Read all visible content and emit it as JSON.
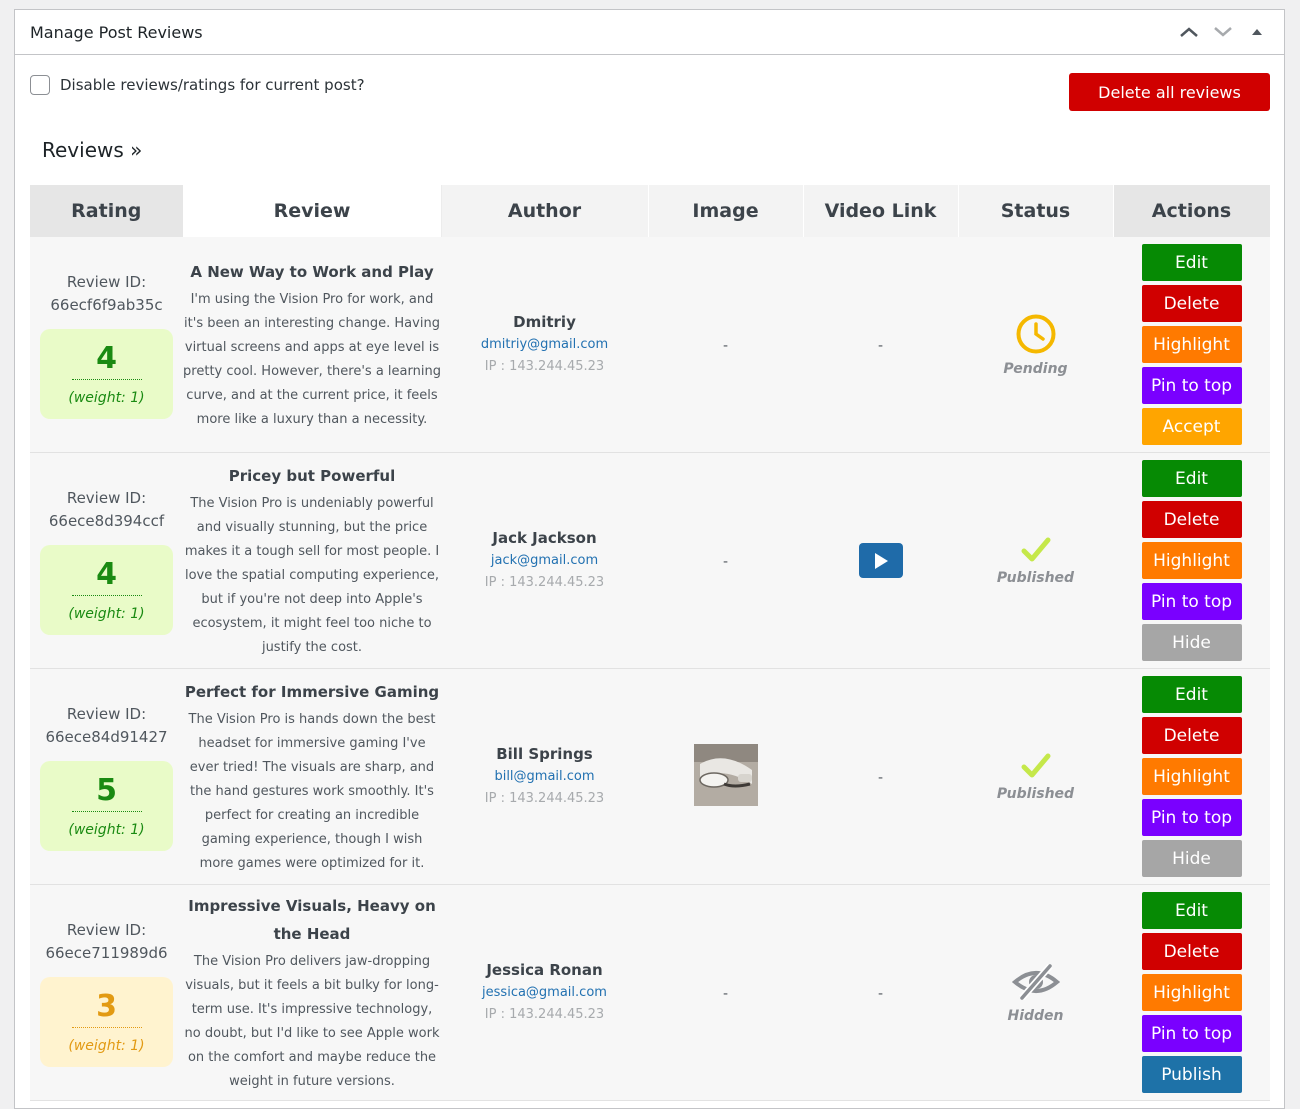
{
  "metabox": {
    "title": "Manage Post Reviews",
    "disable_label": "Disable reviews/ratings for current post?",
    "delete_all_label": "Delete all reviews",
    "reviews_heading": "Reviews »"
  },
  "table": {
    "headers": [
      "Rating",
      "Review",
      "Author",
      "Image",
      "Video Link",
      "Status",
      "Actions"
    ]
  },
  "reviews": [
    {
      "review_id_label": "Review ID:",
      "review_id": "66ecf6f9ab35c",
      "rating": "4",
      "weight": "(weight: 1)",
      "rating_color": "green",
      "title": "A New Way to Work and Play",
      "text": "I'm using the Vision Pro for work, and it's been an interesting change. Having virtual screens and apps at eye level is pretty cool. However, there's a learning curve, and at the current price, it feels more like a luxury than a necessity.",
      "author_name": "Dmitriy",
      "author_email": "dmitriy@gmail.com",
      "author_ip": "IP : 143.244.45.23",
      "image": "-",
      "video": "-",
      "status": "Pending",
      "status_icon": "clock-icon",
      "actions": [
        "Edit",
        "Delete",
        "Highlight",
        "Pin to top",
        "Accept"
      ]
    },
    {
      "review_id_label": "Review ID:",
      "review_id": "66ece8d394ccf",
      "rating": "4",
      "weight": "(weight: 1)",
      "rating_color": "green",
      "title": "Pricey but Powerful",
      "text": "The Vision Pro is undeniably powerful and visually stunning, but the price makes it a tough sell for most people. I love the spatial computing experience, but if you're not deep into Apple's ecosystem, it might feel too niche to justify the cost.",
      "author_name": "Jack Jackson",
      "author_email": "jack@gmail.com",
      "author_ip": "IP : 143.244.45.23",
      "image": "-",
      "video": "play-icon",
      "status": "Published",
      "status_icon": "checkmark-icon",
      "actions": [
        "Edit",
        "Delete",
        "Highlight",
        "Pin to top",
        "Hide"
      ]
    },
    {
      "review_id_label": "Review ID:",
      "review_id": "66ece84d91427",
      "rating": "5",
      "weight": "(weight: 1)",
      "rating_color": "green",
      "title": "Perfect for Immersive Gaming",
      "text": "The Vision Pro is hands down the best headset for immersive gaming I've ever tried! The visuals are sharp, and the hand gestures work smoothly. It's perfect for creating an incredible gaming experience, though I wish more games were optimized for it.",
      "author_name": "Bill Springs",
      "author_email": "bill@gmail.com",
      "author_ip": "IP : 143.244.45.23",
      "image": "headset-thumbnail",
      "video": "-",
      "status": "Published",
      "status_icon": "checkmark-icon",
      "actions": [
        "Edit",
        "Delete",
        "Highlight",
        "Pin to top",
        "Hide"
      ]
    },
    {
      "review_id_label": "Review ID:",
      "review_id": "66ece711989d6",
      "rating": "3",
      "weight": "(weight: 1)",
      "rating_color": "amber",
      "title": "Impressive Visuals, Heavy on the Head",
      "text": "The Vision Pro delivers jaw-dropping visuals, but it feels a bit bulky for long-term use. It's impressive technology, no doubt, but I'd like to see Apple work on the comfort and maybe reduce the weight in future versions.",
      "author_name": "Jessica Ronan",
      "author_email": "jessica@gmail.com",
      "author_ip": "IP : 143.244.45.23",
      "image": "-",
      "video": "-",
      "status": "Hidden",
      "status_icon": "eye-slash-icon",
      "actions": [
        "Edit",
        "Delete",
        "Highlight",
        "Pin to top",
        "Publish"
      ]
    }
  ],
  "colors": {
    "edit": "#068a04",
    "delete": "#d00000",
    "highlight": "#ff7a00",
    "pin": "#7a00ff",
    "accept": "#ffa500",
    "hide": "#a6a6a6",
    "publish": "#1e72a8",
    "pending": "#f5b800",
    "published": "#c5e84a"
  }
}
